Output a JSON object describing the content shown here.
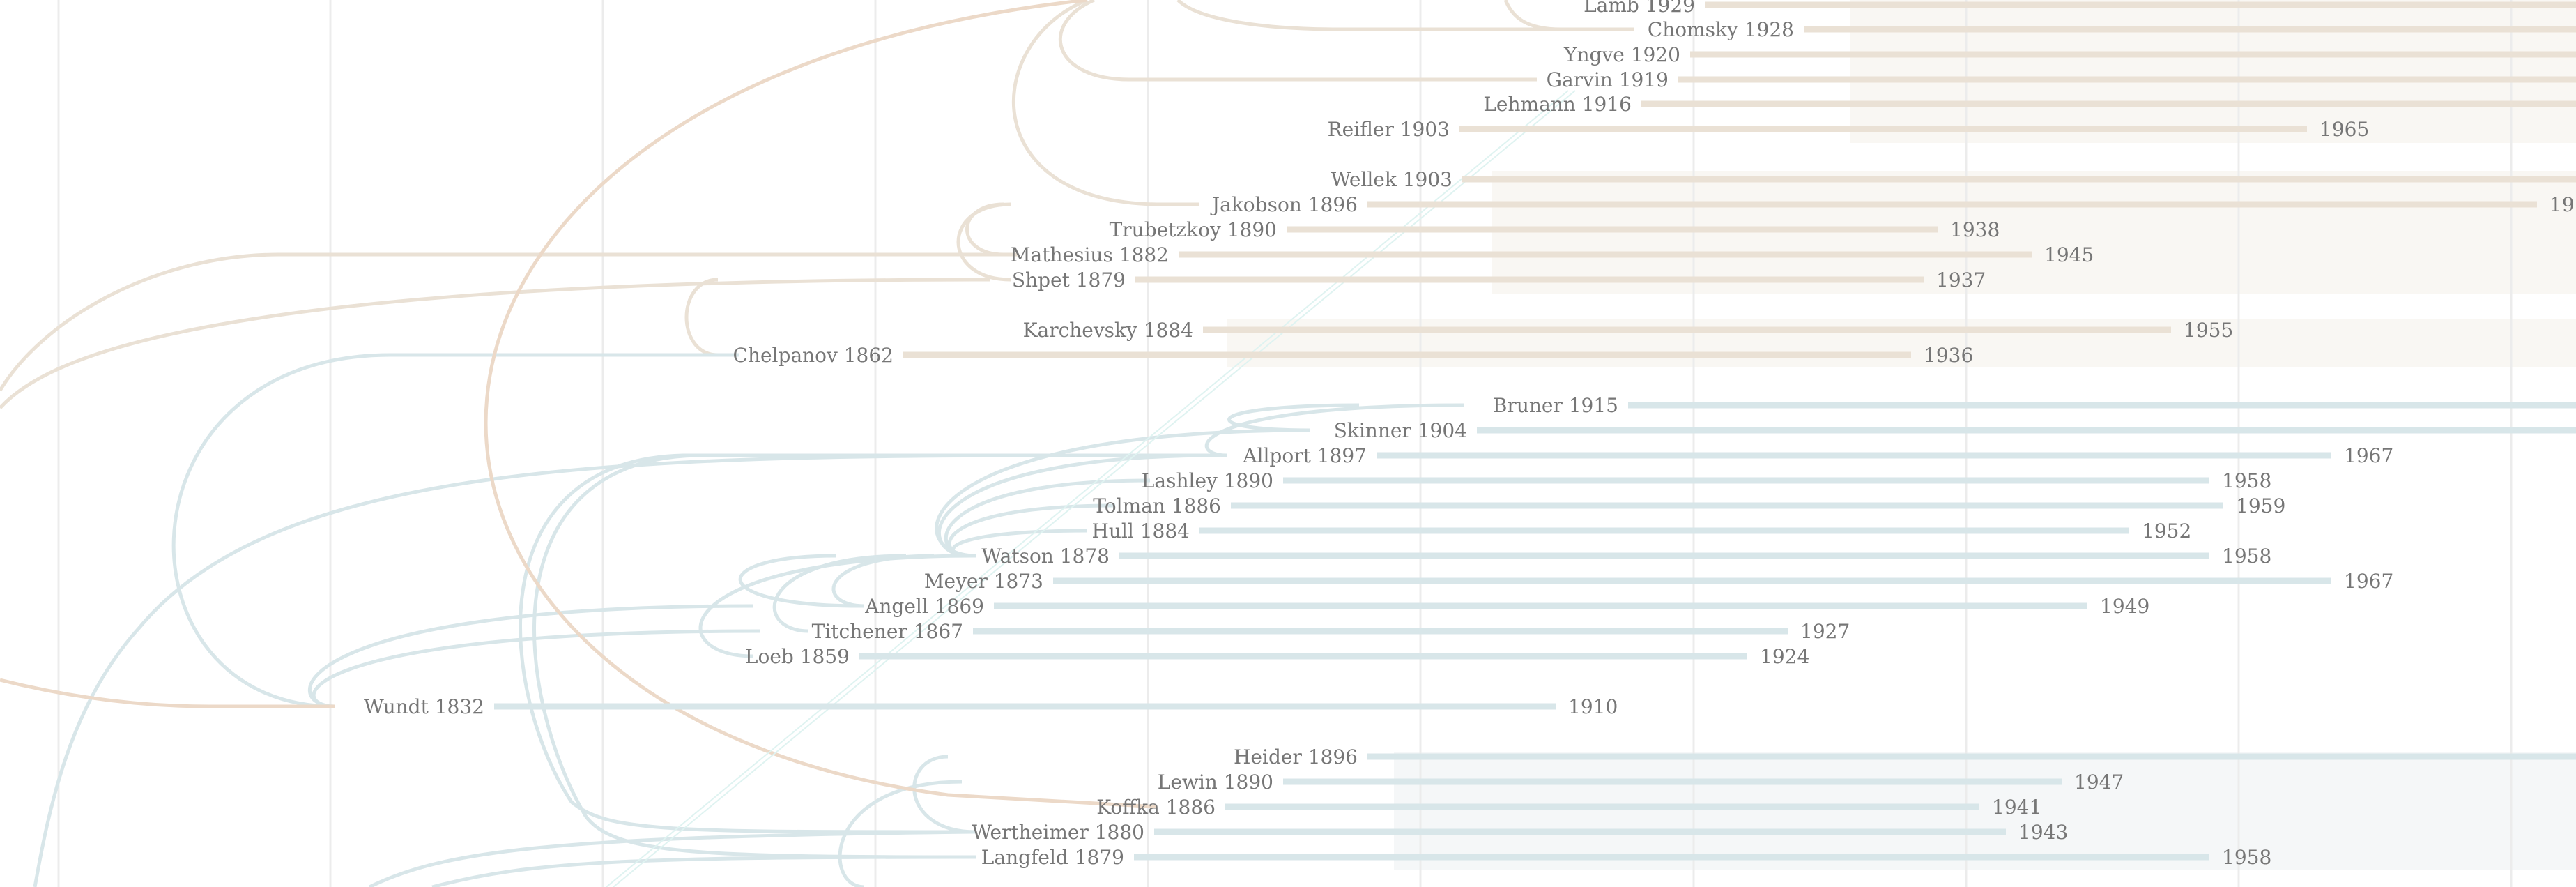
{
  "colors": {
    "background": "#ffffff",
    "grid": "#ececec",
    "linguistics_line": "#eae1d5",
    "linguistics_band": "#f9f7f3",
    "psychology_line": "#d8e6e9",
    "psychology_band": "#f5f7f8",
    "linguistics_bridge": "#ecd9c8",
    "teal_trace": "#dff3f1",
    "label": "#767676"
  },
  "timeline": {
    "people": [
      {
        "label": "Lamb 1929",
        "group": "linguistics"
      },
      {
        "label": "Chomsky 1928",
        "group": "linguistics"
      },
      {
        "label": "Yngve 1920",
        "group": "linguistics"
      },
      {
        "label": "Garvin 1919",
        "group": "linguistics"
      },
      {
        "label": "Lehmann 1916",
        "group": "linguistics"
      },
      {
        "label": "Reifler 1903",
        "group": "linguistics",
        "death": "1965"
      },
      {
        "label": "Wellek 1903",
        "group": "linguistics"
      },
      {
        "label": "Jakobson 1896",
        "group": "linguistics",
        "death": "19"
      },
      {
        "label": "Trubetzkoy 1890",
        "group": "linguistics",
        "death": "1938"
      },
      {
        "label": "Mathesius 1882",
        "group": "linguistics",
        "death": "1945"
      },
      {
        "label": "Shpet 1879",
        "group": "linguistics",
        "death": "1937"
      },
      {
        "label": "Karchevsky 1884",
        "group": "linguistics",
        "death": "1955"
      },
      {
        "label": "Chelpanov 1862",
        "group": "linguistics",
        "death": "1936"
      },
      {
        "label": "Bruner 1915",
        "group": "psychology"
      },
      {
        "label": "Skinner 1904",
        "group": "psychology"
      },
      {
        "label": "Allport 1897",
        "group": "psychology",
        "death": "1967"
      },
      {
        "label": "Lashley 1890",
        "group": "psychology",
        "death": "1958"
      },
      {
        "label": "Tolman 1886",
        "group": "psychology",
        "death": "1959"
      },
      {
        "label": "Hull 1884",
        "group": "psychology",
        "death": "1952"
      },
      {
        "label": "Watson 1878",
        "group": "psychology",
        "death": "1958"
      },
      {
        "label": "Meyer 1873",
        "group": "psychology",
        "death": "1967"
      },
      {
        "label": "Angell 1869",
        "group": "psychology",
        "death": "1949"
      },
      {
        "label": "Titchener 1867",
        "group": "psychology",
        "death": "1927"
      },
      {
        "label": "Loeb 1859",
        "group": "psychology",
        "death": "1924"
      },
      {
        "label": "Wundt 1832",
        "group": "psychology",
        "death": "1910"
      },
      {
        "label": "Heider 1896",
        "group": "psychology"
      },
      {
        "label": "Lewin 1890",
        "group": "psychology",
        "death": "1947"
      },
      {
        "label": "Koffka 1886",
        "group": "psychology",
        "death": "1941"
      },
      {
        "label": "Wertheimer 1880",
        "group": "psychology",
        "death": "1943"
      },
      {
        "label": "Langfeld 1879",
        "group": "psychology",
        "death": "1958"
      }
    ]
  }
}
